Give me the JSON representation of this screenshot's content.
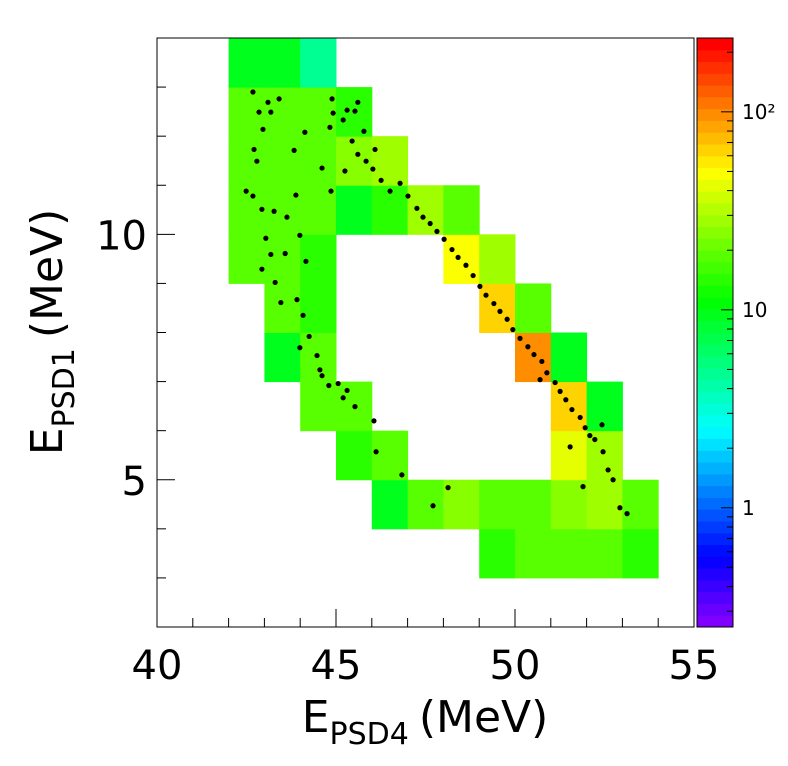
{
  "chart_data": {
    "type": "histogram2d",
    "xlabel": {
      "symbol": "E",
      "subscript": "PSD4",
      "unit": "(MeV)"
    },
    "ylabel": {
      "symbol": "E",
      "subscript": "PSD1",
      "unit": "(MeV)"
    },
    "xlim": [
      40,
      55
    ],
    "ylim": [
      2,
      14
    ],
    "xticks": [
      40,
      45,
      50,
      55
    ],
    "xminorticks": [
      41,
      42,
      43,
      44,
      46,
      47,
      48,
      49,
      51,
      52,
      53,
      54
    ],
    "yticks": [
      5,
      10
    ],
    "yminorticks": [
      3,
      4,
      6,
      7,
      8,
      9,
      11,
      12,
      13
    ],
    "zlim": [
      0.25,
      236
    ],
    "zticks": [
      1,
      10,
      {
        "value": 100,
        "label": "10²"
      }
    ],
    "zminorticks": [
      0.3,
      0.4,
      0.5,
      0.6,
      0.7,
      0.8,
      0.9,
      2,
      3,
      4,
      5,
      6,
      7,
      8,
      9,
      20,
      30,
      40,
      50,
      60,
      70,
      80,
      90,
      200
    ],
    "log_z": true,
    "xbins": [
      40,
      41,
      42,
      43,
      44,
      45,
      46,
      47,
      48,
      49,
      50,
      51,
      52,
      53,
      54,
      55
    ],
    "ybins": [
      2,
      3,
      4,
      5,
      6,
      7,
      8,
      9,
      10,
      11,
      12,
      13,
      14
    ],
    "z": [
      [
        null,
        null,
        null,
        null,
        null,
        null,
        null,
        null,
        null,
        null,
        null,
        null,
        null,
        null,
        null
      ],
      [
        null,
        null,
        null,
        null,
        null,
        null,
        null,
        null,
        null,
        15,
        20,
        20,
        20,
        15,
        null
      ],
      [
        null,
        null,
        null,
        null,
        null,
        null,
        10,
        20,
        25,
        20,
        20,
        25,
        30,
        20,
        null
      ],
      [
        null,
        null,
        null,
        null,
        null,
        15,
        20,
        null,
        null,
        null,
        null,
        40,
        30,
        null,
        null
      ],
      [
        null,
        null,
        null,
        null,
        20,
        20,
        null,
        null,
        null,
        null,
        null,
        60,
        10,
        null,
        null
      ],
      [
        null,
        null,
        null,
        10,
        20,
        null,
        null,
        null,
        null,
        null,
        100,
        10,
        null,
        null,
        null
      ],
      [
        null,
        null,
        null,
        20,
        15,
        null,
        null,
        null,
        null,
        60,
        20,
        null,
        null,
        null,
        null
      ],
      [
        null,
        null,
        20,
        20,
        15,
        null,
        null,
        null,
        50,
        30,
        null,
        null,
        null,
        null,
        null
      ],
      [
        null,
        null,
        20,
        20,
        20,
        10,
        15,
        30,
        20,
        null,
        null,
        null,
        null,
        null,
        null
      ],
      [
        null,
        null,
        20,
        20,
        20,
        25,
        30,
        null,
        null,
        null,
        null,
        null,
        null,
        null,
        null
      ],
      [
        null,
        null,
        20,
        20,
        20,
        15,
        null,
        null,
        null,
        null,
        null,
        null,
        null,
        null,
        null
      ],
      [
        null,
        null,
        10,
        10,
        5,
        null,
        null,
        null,
        null,
        null,
        null,
        null,
        null,
        null,
        null
      ]
    ],
    "overlay": {
      "type": "scatter",
      "color": "#000000",
      "x": [
        42.68,
        42.85,
        43.1,
        43.41,
        42.96,
        43.18,
        42.71,
        42.79,
        42.49,
        42.68,
        42.93,
        43.27,
        43.63,
        43.04,
        43.18,
        42.93,
        43.3,
        43.58,
        43.46,
        43.91,
        44.08,
        43.99,
        44.25,
        44.47,
        44.55,
        44.61,
        44.8,
        45.06,
        45.2,
        45.31,
        45.53,
        46.06,
        46.12,
        46.84,
        48.13,
        47.71,
        45.53,
        45.61,
        44.83,
        45.45,
        45.61,
        45.84,
        46.03,
        46.26,
        46.51,
        46.79,
        47.01,
        47.26,
        47.43,
        47.63,
        47.82,
        48.02,
        48.24,
        48.41,
        48.63,
        48.83,
        49.02,
        49.19,
        49.41,
        49.58,
        49.78,
        49.94,
        50.14,
        50.36,
        50.53,
        50.75,
        50.89,
        51.12,
        51.26,
        51.42,
        51.59,
        51.82,
        51.96,
        52.09,
        52.23,
        52.46,
        52.6,
        52.74,
        52.93,
        53.13,
        51.9,
        52.43,
        51.54,
        50.7,
        43.99,
        44.13,
        43.83,
        43.88,
        44.16,
        44.89,
        44.92,
        45.2,
        45.31,
        45.78,
        44.61,
        44.86,
        45.25,
        46.09
      ],
      "y": [
        12.9,
        12.49,
        12.69,
        12.76,
        12.14,
        12.49,
        11.73,
        11.49,
        10.88,
        10.78,
        10.51,
        10.47,
        10.35,
        9.92,
        9.59,
        9.29,
        9.02,
        9.61,
        8.61,
        8.67,
        8.35,
        7.69,
        7.92,
        7.53,
        7.24,
        7.12,
        6.92,
        6.96,
        6.67,
        6.82,
        6.49,
        6.2,
        5.57,
        5.1,
        4.84,
        4.47,
        12.51,
        12.69,
        12.18,
        11.9,
        11.63,
        11.49,
        11.33,
        11.1,
        10.88,
        11.04,
        10.78,
        10.53,
        10.35,
        10.22,
        10.06,
        9.9,
        9.69,
        9.53,
        9.37,
        9.16,
        8.94,
        8.76,
        8.59,
        8.43,
        8.27,
        8.06,
        7.88,
        7.71,
        7.55,
        7.41,
        7.18,
        6.98,
        6.8,
        6.63,
        6.43,
        6.27,
        6.06,
        5.9,
        5.82,
        5.57,
        5.2,
        5.0,
        4.43,
        4.31,
        4.86,
        6.12,
        5.67,
        7.04,
        9.98,
        12.08,
        11.71,
        10.8,
        9.45,
        12.76,
        12.47,
        12.33,
        12.53,
        12.1,
        11.35,
        10.88,
        11.29,
        11.73
      ]
    }
  }
}
